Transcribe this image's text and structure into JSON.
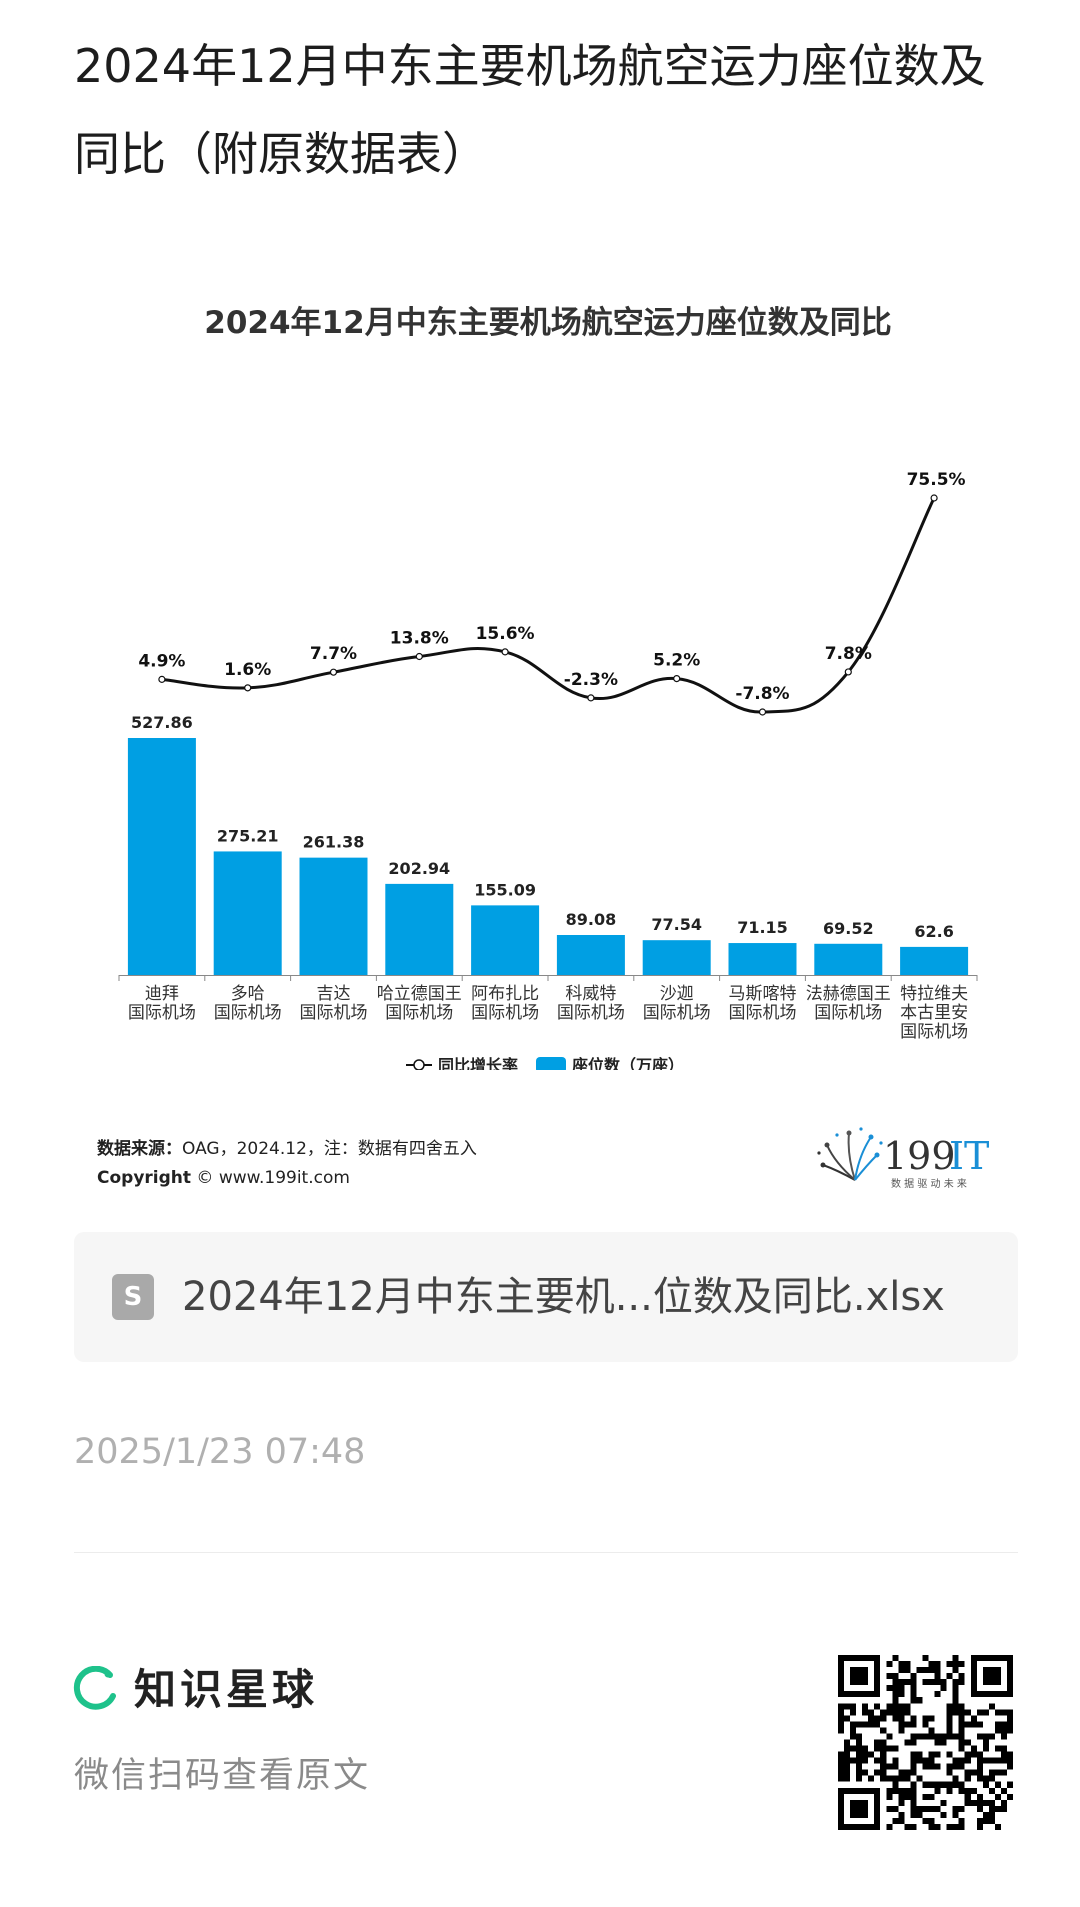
{
  "page": {
    "title": "2024年12月中东主要机场航空运力座位数及同比（附原数据表）"
  },
  "chart_data": {
    "type": "bar+line",
    "title": "2024年12月中东主要机场航空运力座位数及同比",
    "categories": [
      [
        "迪拜",
        "国际机场"
      ],
      [
        "多哈",
        "国际机场"
      ],
      [
        "吉达",
        "国际机场"
      ],
      [
        "哈立德国王",
        "国际机场"
      ],
      [
        "阿布扎比",
        "国际机场"
      ],
      [
        "科威特",
        "国际机场"
      ],
      [
        "沙迦",
        "国际机场"
      ],
      [
        "马斯喀特",
        "国际机场"
      ],
      [
        "法赫德国王",
        "国际机场"
      ],
      [
        "特拉维夫",
        "本古里安",
        "国际机场"
      ]
    ],
    "series": [
      {
        "name": "座位数（万座）",
        "type": "bar",
        "color": "#009fe3",
        "values": [
          527.86,
          275.21,
          261.38,
          202.94,
          155.09,
          89.08,
          77.54,
          71.15,
          69.52,
          62.6
        ],
        "labels": [
          "527.86",
          "275.21",
          "261.38",
          "202.94",
          "155.09",
          "89.08",
          "77.54",
          "71.15",
          "69.52",
          "62.6"
        ]
      },
      {
        "name": "同比增长率",
        "type": "line",
        "color": "#111111",
        "values": [
          4.9,
          1.6,
          7.7,
          13.8,
          15.6,
          -2.3,
          5.2,
          -7.8,
          7.8,
          75.5
        ],
        "labels": [
          "4.9%",
          "1.6%",
          "7.7%",
          "13.8%",
          "15.6%",
          "-2.3%",
          "5.2%",
          "-7.8%",
          "7.8%",
          "75.5%"
        ]
      }
    ],
    "legend": {
      "position": "bottom",
      "line_label": "同比增长率",
      "bar_label": "座位数（万座）"
    }
  },
  "source": {
    "label": "数据来源：",
    "text": "OAG，2024.12，注：数据有四舍五入",
    "copyright_label": "Copyright",
    "copyright_text": "© www.199it.com"
  },
  "logo": {
    "main": "199IT",
    "tagline": "数 据 驱 动 未 来"
  },
  "attachment": {
    "icon_letter": "S",
    "file_name": "2024年12月中东主要机...位数及同比.xlsx"
  },
  "timestamp": "2025/1/23 07:48",
  "footer": {
    "brand": "知识星球",
    "hint": "微信扫码查看原文"
  }
}
